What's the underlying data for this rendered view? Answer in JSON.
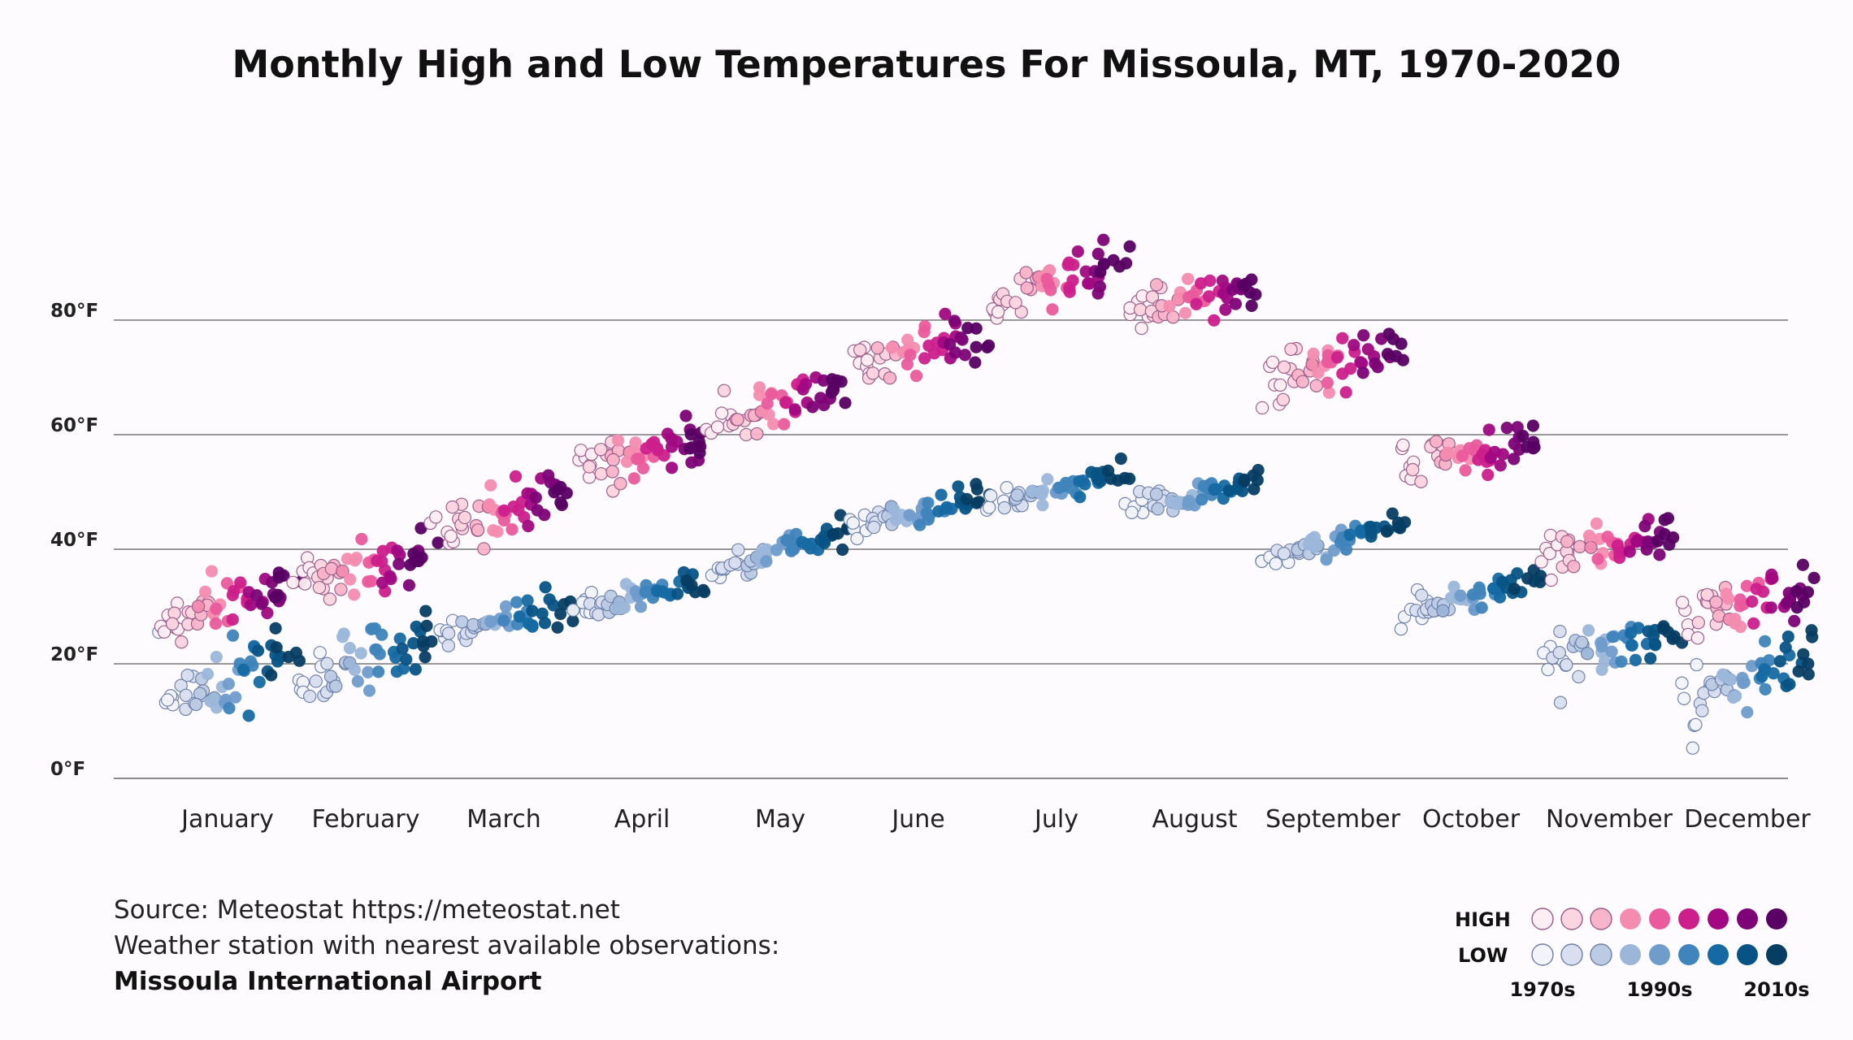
{
  "title": "Monthly High and Low Temperatures For Missoula, MT, 1970-2020",
  "source": {
    "line1": "Source: Meteostat https://meteostat.net",
    "line2": "Weather station with nearest available observations:",
    "station": "Missoula International Airport"
  },
  "chart_data": {
    "type": "scatter",
    "title": "Monthly High and Low Temperatures For Missoula, MT, 1970-2020",
    "xlabel": "",
    "ylabel": "",
    "categories": [
      "January",
      "February",
      "March",
      "April",
      "May",
      "June",
      "July",
      "August",
      "September",
      "October",
      "November",
      "December"
    ],
    "y_ticks": [
      0,
      20,
      40,
      60,
      80
    ],
    "y_tick_labels": [
      "0°F",
      "20°F",
      "40°F",
      "60°F",
      "80°F"
    ],
    "ylim": [
      -4,
      98
    ],
    "grid": true,
    "years": [
      1970,
      2020
    ],
    "legend": {
      "position": "bottom-right",
      "high_label": "HIGH",
      "low_label": "LOW",
      "decade_labels": [
        "1970s",
        "1990s",
        "2010s"
      ],
      "high_colors": [
        "#fdeef3",
        "#fbd5e0",
        "#f8b4c8",
        "#f48cb0",
        "#ea5a9c",
        "#cc1f8c",
        "#a10882",
        "#7d0377",
        "#590064"
      ],
      "low_colors": [
        "#f3f4fa",
        "#d9dff0",
        "#bccbe4",
        "#9bb6d9",
        "#6f9ccb",
        "#3f84bb",
        "#166aa3",
        "#075385",
        "#063d63"
      ]
    },
    "series": [
      {
        "name": "HIGH",
        "monthly_means": [
          30.5,
          36.5,
          47,
          57,
          66,
          74.5,
          86.5,
          84,
          72.5,
          56.5,
          40.5,
          30.5
        ],
        "monthly_trend_per_decade": [
          1.2,
          1.2,
          1.3,
          1.0,
          1.2,
          0.9,
          1.2,
          1.0,
          1.3,
          1.0,
          0.8,
          1.1
        ],
        "monthly_spread": [
          4.5,
          4.5,
          4.0,
          4.0,
          3.5,
          3.5,
          4.0,
          3.5,
          4.0,
          3.5,
          3.5,
          4.5
        ]
      },
      {
        "name": "LOW",
        "monthly_means": [
          17.5,
          20.5,
          27,
          32,
          39.5,
          46.5,
          50.5,
          49.5,
          41.5,
          31.5,
          23.5,
          17.5
        ],
        "monthly_trend_per_decade": [
          1.5,
          1.5,
          0.8,
          1.0,
          1.5,
          1.0,
          1.0,
          0.9,
          1.2,
          1.2,
          0.8,
          1.5
        ],
        "monthly_spread": [
          5.5,
          5.5,
          3.0,
          2.5,
          2.0,
          1.8,
          2.0,
          2.0,
          2.0,
          2.5,
          4.0,
          5.0
        ]
      }
    ]
  }
}
